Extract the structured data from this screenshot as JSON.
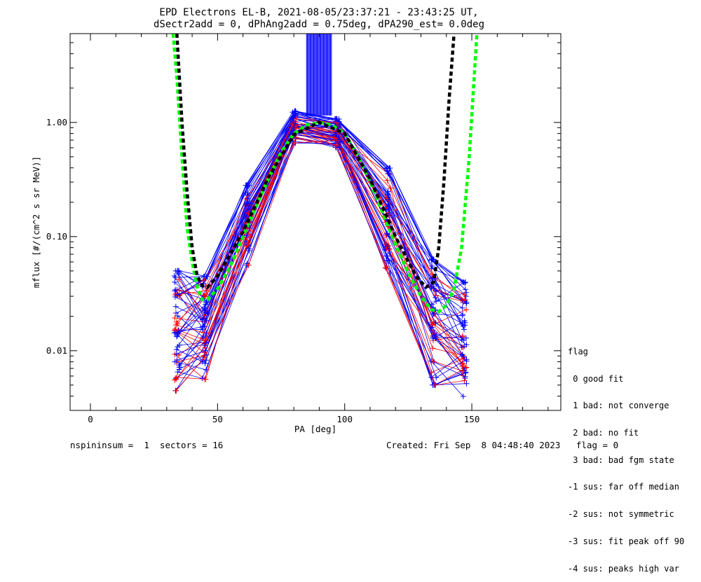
{
  "chart_data": {
    "type": "line",
    "title": "EPD Electrons EL-B, 2021-08-05/23:37:21 - 23:43:25 UT,",
    "subtitle": "dSectr2add = 0, dPhAng2add = 0.75deg, dPA290_est=   0.0deg",
    "xlabel": "PA [deg]",
    "ylabel": "mflux [#/(cm^2 s sr MeV)]",
    "xlim": [
      -8,
      185
    ],
    "ylim": [
      0.003,
      6.0
    ],
    "yscale": "log",
    "x_ticks": [
      "0",
      "50",
      "100",
      "150"
    ],
    "x_tick_values": [
      0,
      50,
      100,
      150
    ],
    "y_ticks": [
      "0.01",
      "0.10",
      "1.00"
    ],
    "y_tick_values": [
      0.01,
      0.1,
      1.0
    ],
    "series": [
      {
        "color": "#00ff00",
        "style": "dashed",
        "x": [
          32.5,
          34,
          36,
          38,
          40,
          42,
          44,
          46,
          50,
          55,
          60,
          65,
          70,
          75,
          80,
          85,
          90,
          95,
          100,
          105,
          110,
          115,
          120,
          125,
          130,
          134,
          137,
          140,
          143,
          146,
          149,
          152
        ],
        "y": [
          6.0,
          2.5,
          0.5,
          0.12,
          0.06,
          0.036,
          0.028,
          0.028,
          0.035,
          0.055,
          0.1,
          0.18,
          0.32,
          0.55,
          0.8,
          0.95,
          1.0,
          0.95,
          0.8,
          0.52,
          0.3,
          0.16,
          0.085,
          0.048,
          0.03,
          0.023,
          0.022,
          0.025,
          0.035,
          0.08,
          0.5,
          6.0
        ]
      },
      {
        "color": "#000000",
        "style": "dashed",
        "x": [
          34,
          36,
          38,
          40,
          42,
          44,
          46,
          50,
          60,
          70,
          80,
          90,
          100,
          110,
          120,
          128,
          132,
          135,
          137,
          139,
          141,
          143
        ],
        "y": [
          6.0,
          1.0,
          0.25,
          0.08,
          0.045,
          0.037,
          0.036,
          0.045,
          0.11,
          0.33,
          0.78,
          1.0,
          0.8,
          0.32,
          0.1,
          0.045,
          0.036,
          0.04,
          0.08,
          0.3,
          1.5,
          6.0
        ]
      }
    ],
    "sweep_points_pa": [
      34,
      45,
      62,
      80,
      97,
      117,
      135,
      147
    ],
    "sweep_envelope_log10": {
      "low": [
        -2.35,
        -2.25,
        -1.25,
        -0.18,
        -0.22,
        -1.32,
        -2.3,
        -2.4
      ],
      "high": [
        -1.3,
        -1.35,
        -0.55,
        0.1,
        0.03,
        -0.4,
        -1.2,
        -1.4
      ]
    },
    "sweep_count": 60,
    "sweep_colors": [
      "#0000ff",
      "#ff0000"
    ],
    "spike_x_range": [
      85,
      95
    ],
    "spike_y_bottom": 1.15
  },
  "legend": {
    "title": "flag",
    "items": [
      " 0 good fit",
      " 1 bad: not converge",
      " 2 bad: no fit",
      " 3 bad: bad fgm state",
      "-1 sus: far off median",
      "-2 sus: not symmetric",
      "-3 sus: fit peak off 90",
      "-4 sus: peaks high var"
    ]
  },
  "footer": {
    "left": "nspininsum =  1  sectors = 16",
    "right": "Created: Fri Sep  8 04:48:40 2023   flag = 0"
  }
}
